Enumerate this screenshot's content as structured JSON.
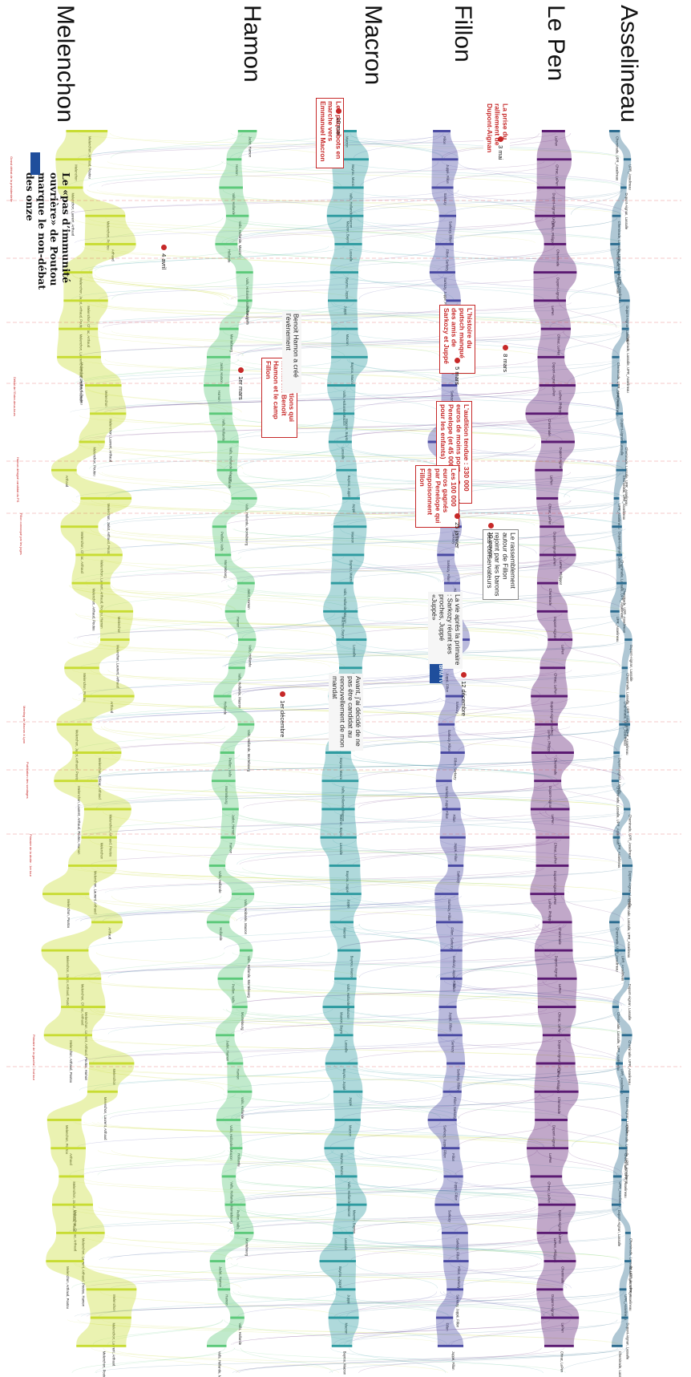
{
  "candidates": [
    {
      "key": "melenchon",
      "name": "Melenchon",
      "color": "#c8dc33"
    },
    {
      "key": "hamon",
      "name": "Hamon",
      "color": "#5cc97a"
    },
    {
      "key": "macron",
      "name": "Macron",
      "color": "#2e9ba0"
    },
    {
      "key": "fillon",
      "name": "Fillon",
      "color": "#4a4aa3"
    },
    {
      "key": "lepen",
      "name": "Le Pen",
      "color": "#5b1a72"
    },
    {
      "key": "asselineau",
      "name": "Asselineau",
      "color": "#2c6c8f"
    }
  ],
  "headline": {
    "text": "Le «pas d’immunité ouvrière» de Poutou marque le non-débat des onze",
    "date": "4 avril"
  },
  "callouts": [
    {
      "id": "c1",
      "text": "Les paquebots en marche vers Emmanuel Macron",
      "date": "10 mai"
    },
    {
      "id": "c2",
      "text": "La prise du ralliement de Dupont-Aignan",
      "date": "3 mai"
    },
    {
      "id": "c3",
      "text": "L’histoire du putsch manqué des amis de Sarkozy et Juppé",
      "date": "5 mars"
    },
    {
      "id": "c4",
      "text": "Ces désertions qui menacent Benoît Hamon et le camp Fillon",
      "date": "1er mars"
    },
    {
      "id": "c5",
      "text": "L’audition tendue : 330 000 euros de moins pour Penelope (et 45 000 euros pour les enfants)",
      "date": "1er février"
    },
    {
      "id": "c6",
      "text": "Les 100 000 euros gagnés par Penelope qui empoisonnent Fillon",
      "date": "25 janvier"
    },
    {
      "id": "c7",
      "text": "Le rassemblement autour de Fillon rejoint par les barons des conservateurs",
      "date": "10 janvier"
    }
  ],
  "quotes": [
    {
      "id": "q1",
      "text": "Avant, j’ai décidé de ne pas être candidat au renouvellement de mon mandat",
      "date": "1er décembre"
    },
    {
      "id": "q2",
      "text": "La vie après la primaire : Sarkozy réunit ses proches, Juppé «Juppé»",
      "date": "12 décembre"
    },
    {
      "id": "q3",
      "text": "Benoit Hamon a créé l’évènement",
      "date": "8 mars"
    }
  ],
  "tv_logo": "BFM TV",
  "small_notes": [
    "Grand débat de la présidentielle",
    "Débat de l’Entre-deux-tours",
    "Hamon désigné candidat du PS",
    "Fillon convoqué par les juges",
    "Meeting de Macron à Lyon",
    "Publication des sondages",
    "Primaire de la droite : 1er tour",
    "Primaire de la gauche : 2nd tour"
  ],
  "stream_labels": {
    "melenchon": [
      "Melenchon, Arthaud, Poutou",
      "Melenchon",
      "Melenchon, Laurent, Arthaud",
      "Melenchon, Poutou",
      "Arthaud",
      "Melenchon, Jadot, Arthaud, Poutou",
      "Melenchon, Chirac, Arthaud",
      "Melenchon, Laurent, Arthaud, Poutou, Hamon"
    ],
    "hamon": [
      "Jadot, Hamon",
      "Hamon",
      "Valls, Hollande",
      "Valls, Hollande, Macron",
      "Hollande",
      "Valls, Hollande, Montebourg",
      "Peillon, Valls",
      "Montebourg"
    ],
    "macron": [
      "Macron",
      "Bayrou, Macron",
      "Valls, Hollande, Macron",
      "Macron, Bayrou",
      "Lassalle",
      "Bayrou, Juppé",
      "Juppé"
    ],
    "fillon": [
      "Fillon",
      "Juppé, Fillon",
      "Sarkozy",
      "Sarkozy, Fillon",
      "Fillon, Sarkozy",
      "Sarkozy, Juppé, Fillon"
    ],
    "lepen": [
      "LePen",
      "Chirac, LePen",
      "Dupont-Aignan, LePen",
      "LePen, Philippot",
      "Cheminade",
      "Dupont-Aignan"
    ],
    "asselineau": [
      "Cheminade, UPR_Asselineau",
      "UPR_Asselineau",
      "Dupont-Aignan, Lassalle",
      "Cheminade, Lassalle, UPR_Asselineau"
    ]
  }
}
